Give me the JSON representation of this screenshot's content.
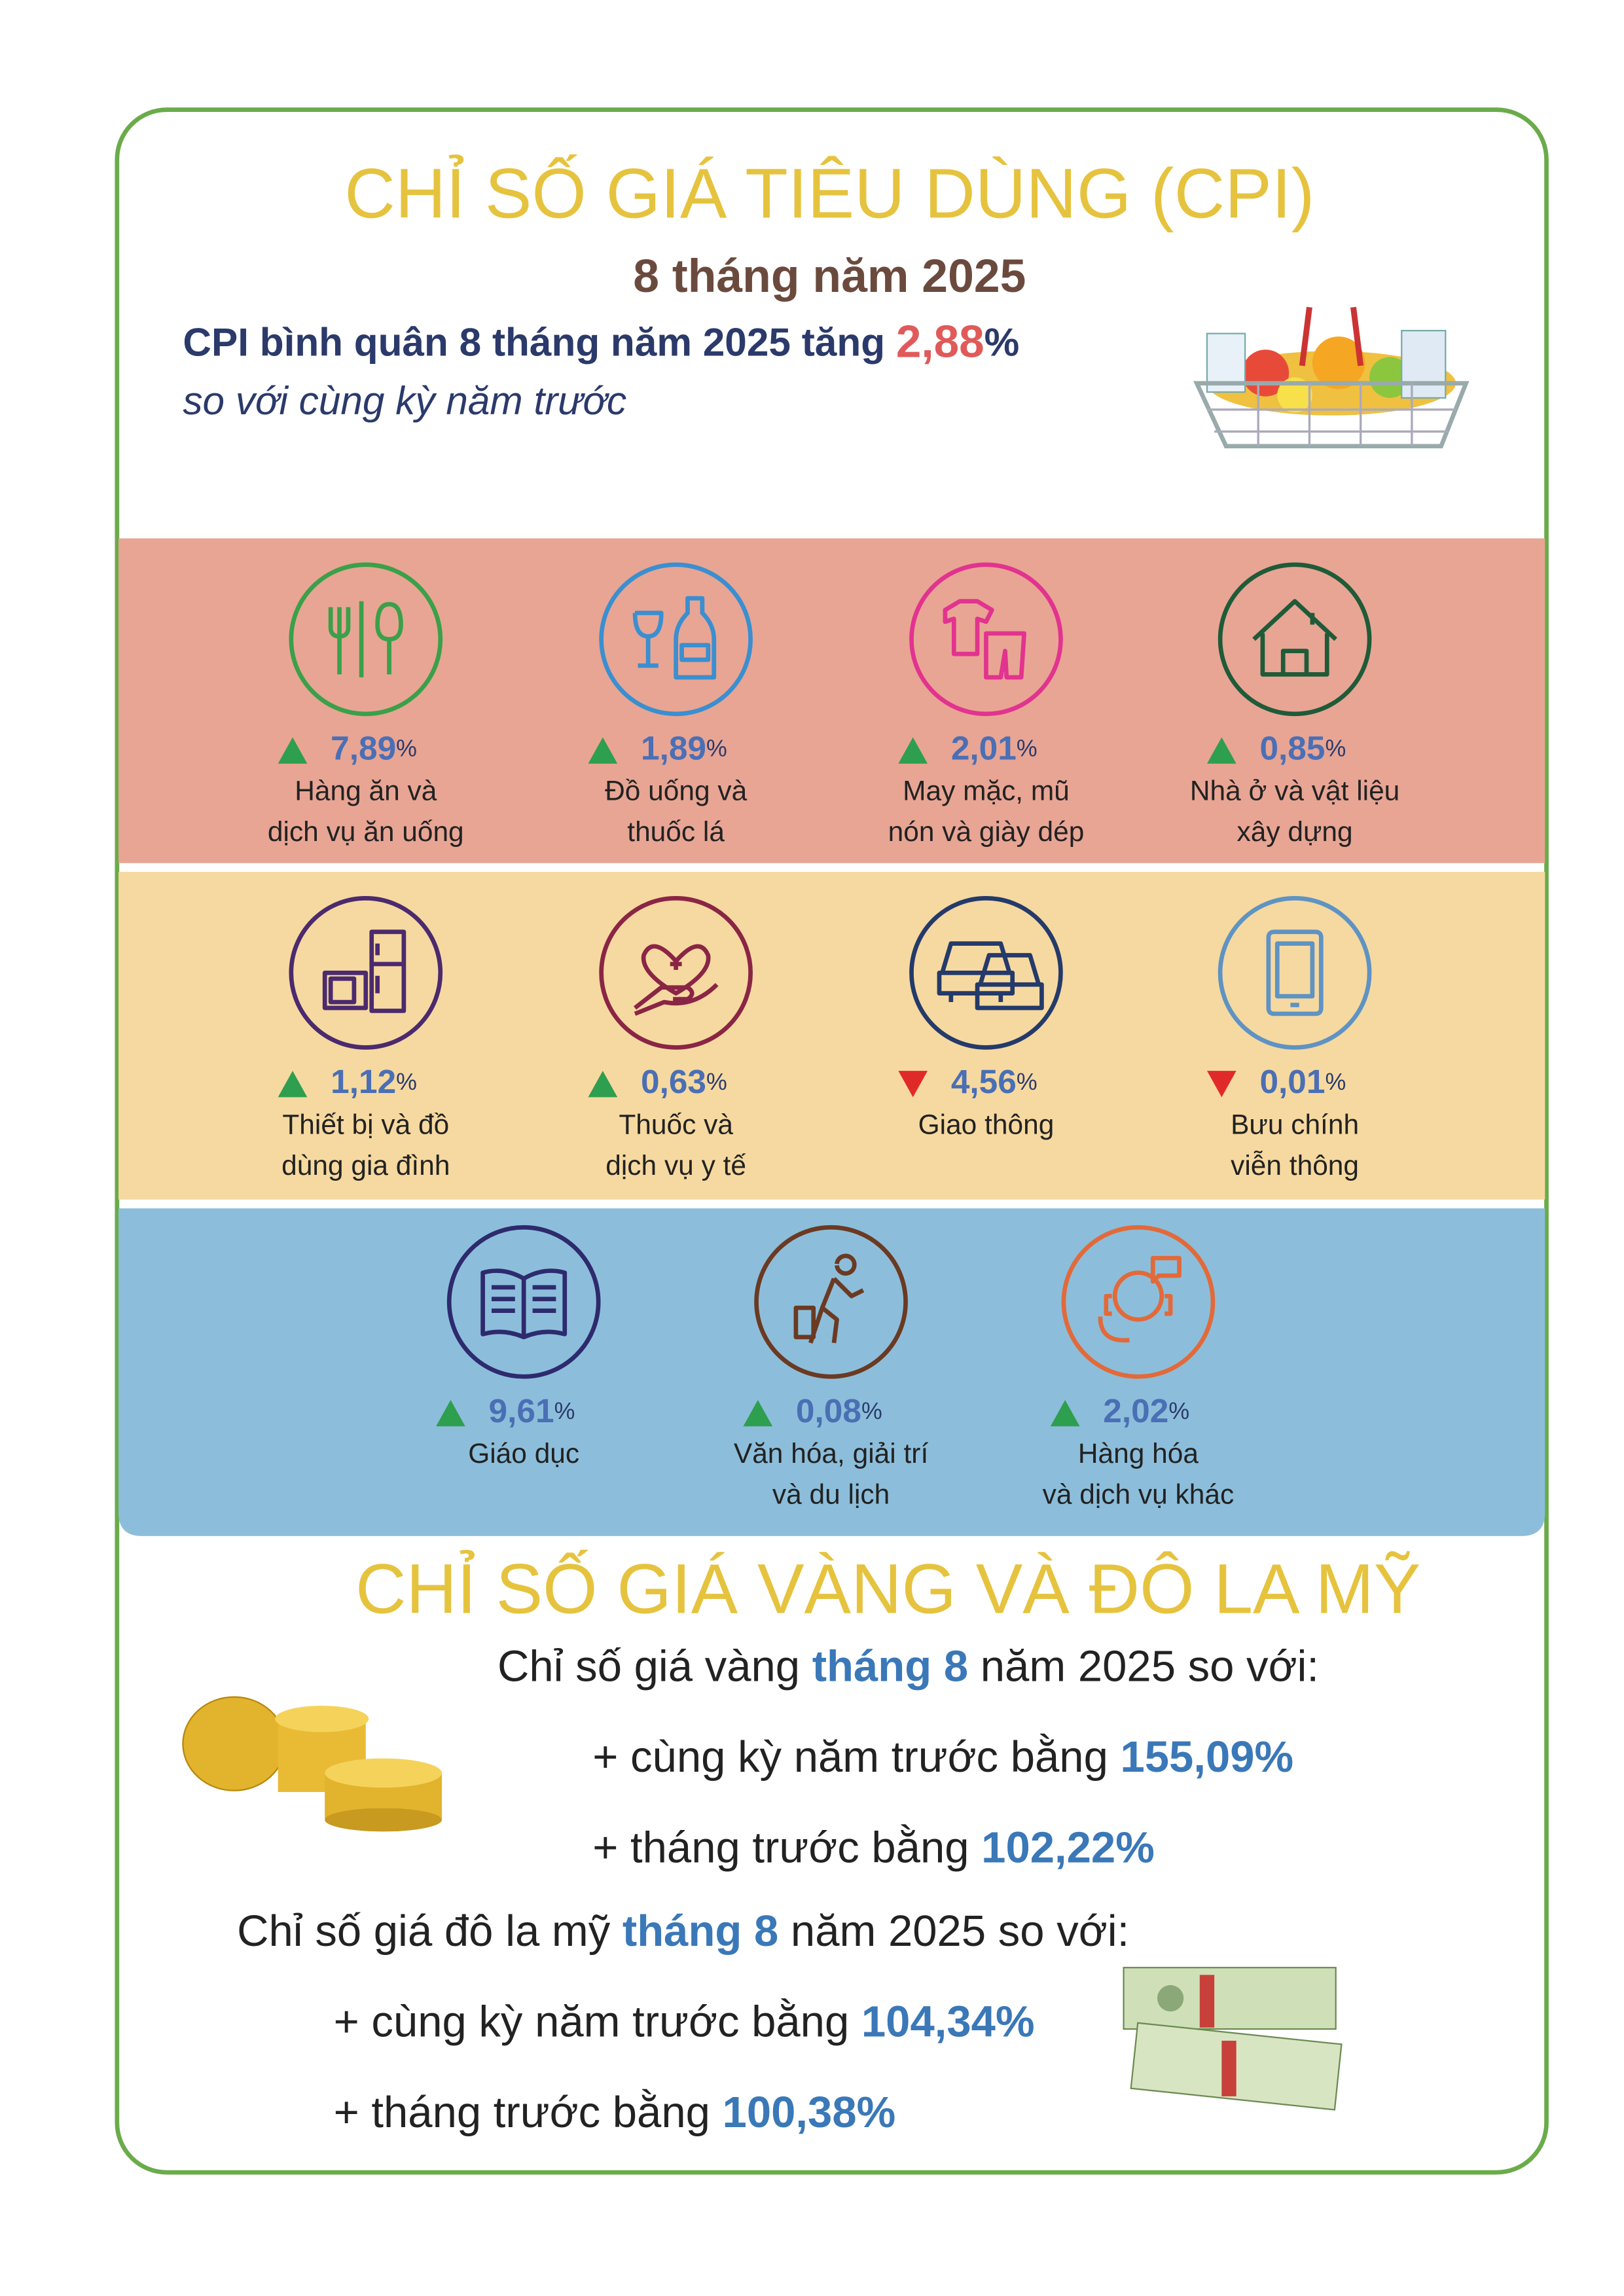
{
  "header": {
    "title": "CHỈ SỐ GIÁ TIÊU DÙNG (CPI)",
    "subtitle": "8 tháng năm 2025",
    "summary": {
      "before": "CPI bình quân 8 tháng năm 2025 tăng ",
      "value": "2,88",
      "unit": "%"
    },
    "note": "so với cùng kỳ năm trước"
  },
  "cpi_groups": [
    {
      "value": "7,89",
      "unit": "%",
      "direction": "up",
      "color": "#3aa04a",
      "label": [
        "Hàng ăn và",
        "dịch vụ ăn uống"
      ]
    },
    {
      "value": "1,89",
      "unit": "%",
      "direction": "up",
      "color": "#3a8fd0",
      "label": [
        "Đồ uống và",
        "thuốc lá"
      ]
    },
    {
      "value": "2,01",
      "unit": "%",
      "direction": "up",
      "color": "#e2338f",
      "label": [
        "May mặc, mũ",
        "nón và giày dép"
      ]
    },
    {
      "value": "0,85",
      "unit": "%",
      "direction": "up",
      "color": "#1f5b38",
      "label": [
        "Nhà ở và vật liệu",
        "xây dựng"
      ]
    },
    {
      "value": "1,12",
      "unit": "%",
      "direction": "up",
      "color": "#4b2a6e",
      "label": [
        "Thiết bị và đồ",
        "dùng gia đình"
      ]
    },
    {
      "value": "0,63",
      "unit": "%",
      "direction": "up",
      "color": "#8a2545",
      "label": [
        "Thuốc và",
        "dịch vụ y tế"
      ]
    },
    {
      "value": "4,56",
      "unit": "%",
      "direction": "down",
      "color": "#243a6a",
      "label": [
        "Giao thông"
      ]
    },
    {
      "value": "0,01",
      "unit": "%",
      "direction": "down",
      "color": "#5e93c4",
      "label": [
        "Bưu chính",
        "viễn thông"
      ]
    },
    {
      "value": "9,61",
      "unit": "%",
      "direction": "up",
      "color": "#2e2a6e",
      "label": [
        "Giáo dục"
      ]
    },
    {
      "value": "0,08",
      "unit": "%",
      "direction": "up",
      "color": "#6b3a22",
      "label": [
        "Văn hóa, giải trí",
        "và du lịch"
      ]
    },
    {
      "value": "2,02",
      "unit": "%",
      "direction": "up",
      "color": "#e26a3a",
      "label": [
        "Hàng hóa",
        "và dịch vụ khác"
      ]
    }
  ],
  "gold_usd": {
    "title": "CHỈ SỐ GIÁ VÀNG VÀ ĐÔ LA MỸ",
    "gold": {
      "intro": {
        "before": "Chỉ số giá vàng ",
        "highlight": "tháng 8",
        "after": " năm 2025 so với:"
      },
      "items": [
        {
          "text": "+ cùng kỳ năm trước bằng ",
          "value": "155,09%"
        },
        {
          "text": "+ tháng trước bằng ",
          "value": "102,22%"
        }
      ]
    },
    "usd": {
      "intro": {
        "before": "Chỉ số giá đô la mỹ ",
        "highlight": "tháng 8",
        "after": " năm 2025 so với:"
      },
      "items": [
        {
          "text": "+ cùng kỳ năm trước bằng ",
          "value": "104,34%"
        },
        {
          "text": "+ tháng trước bằng ",
          "value": "100,38%"
        }
      ]
    }
  }
}
